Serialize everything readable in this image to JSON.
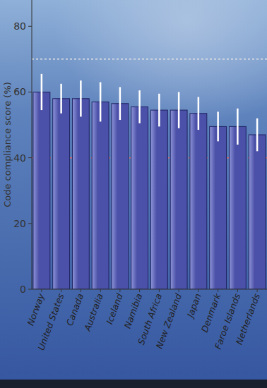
{
  "chart_data": {
    "type": "bar",
    "y_label": "Code compliance score (%)",
    "categories": [
      "Norway",
      "United States",
      "Canada",
      "Australia",
      "Iceland",
      "Namibia",
      "South Africa",
      "New Zealand",
      "Japan",
      "Denmark",
      "Faroe Islands",
      "Netherlands"
    ],
    "values": [
      60,
      58,
      58,
      57,
      56.5,
      55.5,
      54.5,
      54.5,
      53.5,
      49.5,
      49.5,
      47
    ],
    "errors": [
      5.5,
      4.5,
      5.5,
      6,
      5,
      5,
      5,
      5.5,
      5,
      4.5,
      5.5,
      5
    ],
    "color": "#4b50a8",
    "reference_lines": [
      {
        "value": 70,
        "color": "#e6e6e6"
      },
      {
        "value": 40,
        "color": "#e06a6a"
      }
    ],
    "ylim": [
      0,
      88
    ],
    "yticks": [
      0,
      20,
      40,
      60,
      80
    ],
    "grid": false
  }
}
